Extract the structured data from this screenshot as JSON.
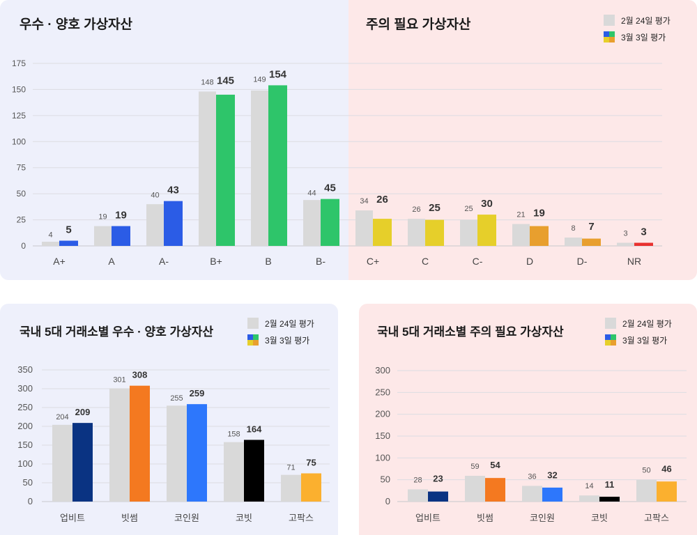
{
  "colors": {
    "previous": "#d9d9d9",
    "grid": "#dcdce2",
    "label": "#555555"
  },
  "top": {
    "title_left": "우수 · 양호 가상자산",
    "title_right": "주의 필요 가상자산",
    "legend": {
      "previous": "2월 24일 평가",
      "current": "3월 3일 평가",
      "current_swatch_colors": [
        "#2b5ce6",
        "#2ec56a",
        "#e6cf2a",
        "#e89f2e"
      ]
    }
  },
  "bottom_left": {
    "title": "국내 5대 거래소별 우수 · 양호 가상자산",
    "legend": {
      "previous": "2월 24일 평가",
      "current": "3월 3일 평가",
      "current_swatch_colors": [
        "#2b5ce6",
        "#2ec56a",
        "#e6cf2a",
        "#e89f2e"
      ]
    }
  },
  "bottom_right": {
    "title": "국내 5대 거래소별 주의 필요 가상자산",
    "legend": {
      "previous": "2월 24일 평가",
      "current": "3월 3일 평가",
      "current_swatch_colors": [
        "#2b5ce6",
        "#2ec56a",
        "#e6cf2a",
        "#e89f2e"
      ]
    }
  },
  "chart_data": [
    {
      "type": "bar",
      "title": "",
      "categories": [
        "A+",
        "A",
        "A-",
        "B+",
        "B",
        "B-",
        "C+",
        "C",
        "C-",
        "D",
        "D-",
        "NR"
      ],
      "series": [
        {
          "name": "2월 24일 평가",
          "values": [
            4,
            19,
            40,
            148,
            149,
            44,
            34,
            26,
            25,
            21,
            8,
            3
          ],
          "color": "#d9d9d9"
        },
        {
          "name": "3월 3일 평가",
          "values": [
            5,
            19,
            43,
            145,
            154,
            45,
            26,
            25,
            30,
            19,
            7,
            3
          ],
          "colors": [
            "#2b5ce6",
            "#2b5ce6",
            "#2b5ce6",
            "#2ec56a",
            "#2ec56a",
            "#2ec56a",
            "#e6cf2a",
            "#e6cf2a",
            "#e6cf2a",
            "#e89f2e",
            "#e89f2e",
            "#e8312f"
          ]
        }
      ],
      "yticks": [
        0,
        25,
        50,
        75,
        100,
        125,
        150,
        175
      ],
      "ylim": [
        0,
        175
      ],
      "grid": true,
      "legend": "top-right"
    },
    {
      "type": "bar",
      "title": "국내 5대 거래소별 우수 · 양호 가상자산",
      "categories": [
        "업비트",
        "빗썸",
        "코인원",
        "코빗",
        "고팍스"
      ],
      "series": [
        {
          "name": "2월 24일 평가",
          "values": [
            204,
            301,
            255,
            158,
            71
          ],
          "color": "#d9d9d9"
        },
        {
          "name": "3월 3일 평가",
          "values": [
            209,
            308,
            259,
            164,
            75
          ],
          "colors": [
            "#0a3382",
            "#f47920",
            "#2d77fc",
            "#000000",
            "#fbb02f"
          ]
        }
      ],
      "yticks": [
        0,
        50,
        100,
        150,
        200,
        250,
        300,
        350
      ],
      "ylim": [
        0,
        350
      ],
      "grid": true,
      "legend": "top-right"
    },
    {
      "type": "bar",
      "title": "국내 5대 거래소별 주의 필요 가상자산",
      "categories": [
        "업비트",
        "빗썸",
        "코인원",
        "코빗",
        "고팍스"
      ],
      "series": [
        {
          "name": "2월 24일 평가",
          "values": [
            28,
            59,
            36,
            14,
            50
          ],
          "color": "#d9d9d9"
        },
        {
          "name": "3월 3일 평가",
          "values": [
            23,
            54,
            32,
            11,
            46
          ],
          "colors": [
            "#0a3382",
            "#f47920",
            "#2d77fc",
            "#000000",
            "#fbb02f"
          ]
        }
      ],
      "yticks": [
        0,
        50,
        100,
        150,
        200,
        250,
        300
      ],
      "ylim": [
        0,
        300
      ],
      "grid": true,
      "legend": "top-right"
    }
  ]
}
